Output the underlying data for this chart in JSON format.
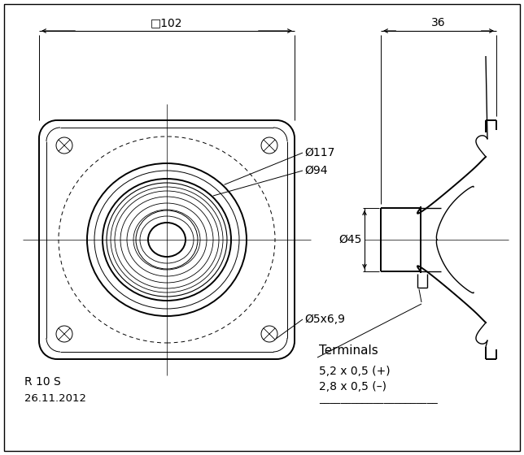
{
  "bg_color": "#ffffff",
  "line_color": "#000000",
  "fig_width": 6.44,
  "fig_height": 5.6,
  "dpi": 100,
  "annotations": {
    "sq102": "□102",
    "d117": "Ø117",
    "d94": "Ø94",
    "d45": "Ø45",
    "d5x69": "Ø5x6,9",
    "terminals": "Terminals",
    "term_plus": "5,2 x 0,5 (+)",
    "term_minus": "2,8 x 0,5 (–)",
    "dim36": "36",
    "model": "R 10 S",
    "date": "26.11.2012"
  }
}
